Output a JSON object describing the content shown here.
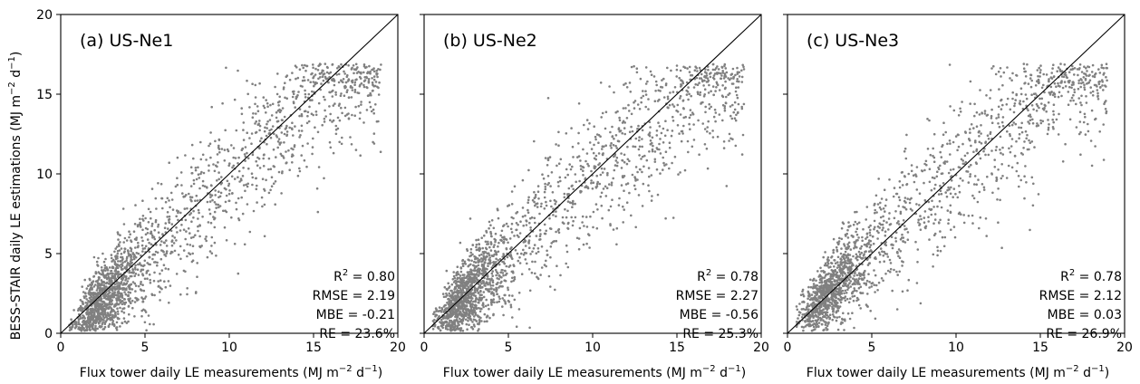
{
  "chart_data": [
    {
      "type": "scatter",
      "title": "(a) US-Ne1",
      "xlabel": "Flux tower daily LE measurements (MJ m",
      "ylabel": "BESS-STAIR daily LE estimations (MJ m",
      "xlim": [
        0,
        20
      ],
      "ylim": [
        0,
        20
      ],
      "xticks": [
        "0",
        "5",
        "10",
        "15",
        "20"
      ],
      "yticks": [
        "0",
        "5",
        "10",
        "15",
        "20"
      ],
      "reference_line": "1:1",
      "point_color": "#808080",
      "point_count": 2000,
      "trend": {
        "slope": 1.02,
        "mid_x": 10,
        "mid_y": 9.8,
        "sat": 15.8,
        "noise": 1.65
      },
      "stats": {
        "r2": "= 0.80",
        "rmse": "RMSE = 2.19",
        "mbe": "MBE = -0.21",
        "re": "RE = 23.6%"
      }
    },
    {
      "type": "scatter",
      "title": "(b) US-Ne2",
      "xlabel": "Flux tower daily LE measurements (MJ m",
      "xlim": [
        0,
        20
      ],
      "ylim": [
        0,
        20
      ],
      "xticks": [
        "0",
        "5",
        "10",
        "15",
        "20"
      ],
      "reference_line": "1:1",
      "point_color": "#808080",
      "point_count": 2000,
      "trend": {
        "slope": 0.95,
        "mid_x": 10,
        "mid_y": 9.5,
        "sat": 15.5,
        "noise": 1.75
      },
      "stats": {
        "r2": "= 0.78",
        "rmse": "RMSE = 2.27",
        "mbe": "MBE = -0.56",
        "re": "RE = 25.3%"
      }
    },
    {
      "type": "scatter",
      "title": "(c) US-Ne3",
      "xlabel": "Flux tower daily LE measurements (MJ m",
      "xlim": [
        0,
        20
      ],
      "ylim": [
        0,
        20
      ],
      "xticks": [
        "0",
        "5",
        "10",
        "15",
        "20"
      ],
      "reference_line": "1:1",
      "point_color": "#808080",
      "point_count": 1800,
      "trend": {
        "slope": 1.0,
        "mid_x": 9,
        "mid_y": 9.2,
        "sat": 15.5,
        "noise": 1.7
      },
      "stats": {
        "r2": "= 0.78",
        "rmse": "RMSE = 2.12",
        "mbe": "MBE = 0.03",
        "re": "RE = 26.9%"
      }
    }
  ],
  "units": {
    "unit_exp": "−2",
    "unit_d": " d",
    "unit_d_exp": "−1",
    "close": ")",
    "r2_base": "R",
    "r2_exp": "2"
  }
}
